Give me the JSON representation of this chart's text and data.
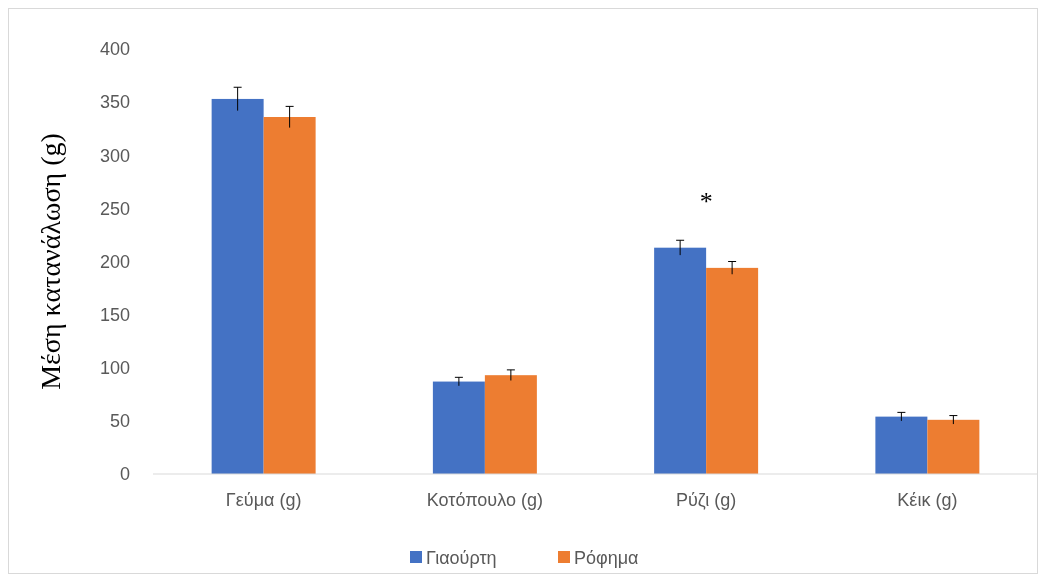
{
  "chart_data": {
    "type": "bar",
    "ylabel": "Μέση κατανάλωση (g)",
    "categories": [
      "Γεύμα (g)",
      "Κοτόπουλο (g)",
      "Ρύζι (g)",
      "Κέικ (g)"
    ],
    "series": [
      {
        "name": "Γιαούρτη",
        "color": "#4472c4",
        "values": [
          353,
          87,
          213,
          54
        ],
        "errors": [
          11,
          4,
          7,
          4
        ]
      },
      {
        "name": "Ρόφημα",
        "color": "#ed7d31",
        "values": [
          336,
          93,
          194,
          51
        ],
        "errors": [
          10,
          5,
          6,
          4
        ]
      }
    ],
    "ylim": [
      0,
      400
    ],
    "yticks": [
      0,
      50,
      100,
      150,
      200,
      250,
      300,
      350,
      400
    ],
    "grid": false,
    "legend": "bottom",
    "annotations": [
      "*"
    ]
  }
}
